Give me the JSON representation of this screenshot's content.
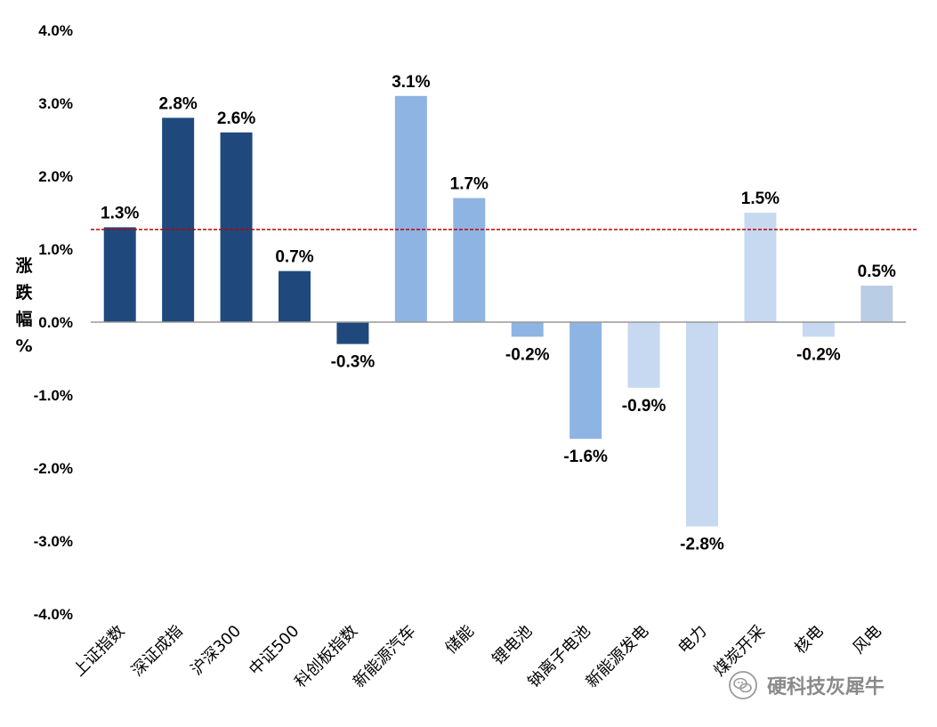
{
  "chart_data": {
    "type": "bar",
    "title": "",
    "xlabel": "",
    "ylabel": "涨跌幅%",
    "ylim": [
      -4.0,
      4.0
    ],
    "y_ticks": [
      "4.0%",
      "3.0%",
      "2.0%",
      "1.0%",
      "0.0%",
      "-1.0%",
      "-2.0%",
      "-3.0%",
      "-4.0%"
    ],
    "reference_line": {
      "value": 1.27,
      "style": "dashed",
      "color": "#c00000"
    },
    "categories": [
      "上证指数",
      "深证成指",
      "沪深300",
      "中证500",
      "科创板指数",
      "新能源汽车",
      "储能",
      "锂电池",
      "钠离子电池",
      "新能源发电",
      "电力",
      "煤炭开采",
      "核电",
      "风电"
    ],
    "values": [
      1.3,
      2.8,
      2.6,
      0.7,
      -0.3,
      3.1,
      1.7,
      -0.2,
      -1.6,
      -0.9,
      -2.8,
      1.5,
      -0.2,
      0.5
    ],
    "value_labels": [
      "1.3%",
      "2.8%",
      "2.6%",
      "0.7%",
      "-0.3%",
      "3.1%",
      "1.7%",
      "-0.2%",
      "-1.6%",
      "-0.9%",
      "-2.8%",
      "1.5%",
      "-0.2%",
      "0.5%"
    ],
    "bar_colors": [
      "#1f497d",
      "#1f497d",
      "#1f497d",
      "#1f497d",
      "#1f497d",
      "#8eb4e3",
      "#8eb4e3",
      "#8eb4e3",
      "#8eb4e3",
      "#c6d9f1",
      "#c6d9f1",
      "#c6d9f1",
      "#c6d9f1",
      "#b9cde5"
    ],
    "grid": false,
    "legend": "none"
  },
  "ylabel_chars": [
    "涨",
    "跌",
    "幅",
    "%"
  ],
  "watermark": {
    "text": "硬科技灰犀牛",
    "icon": "wechat-icon"
  }
}
